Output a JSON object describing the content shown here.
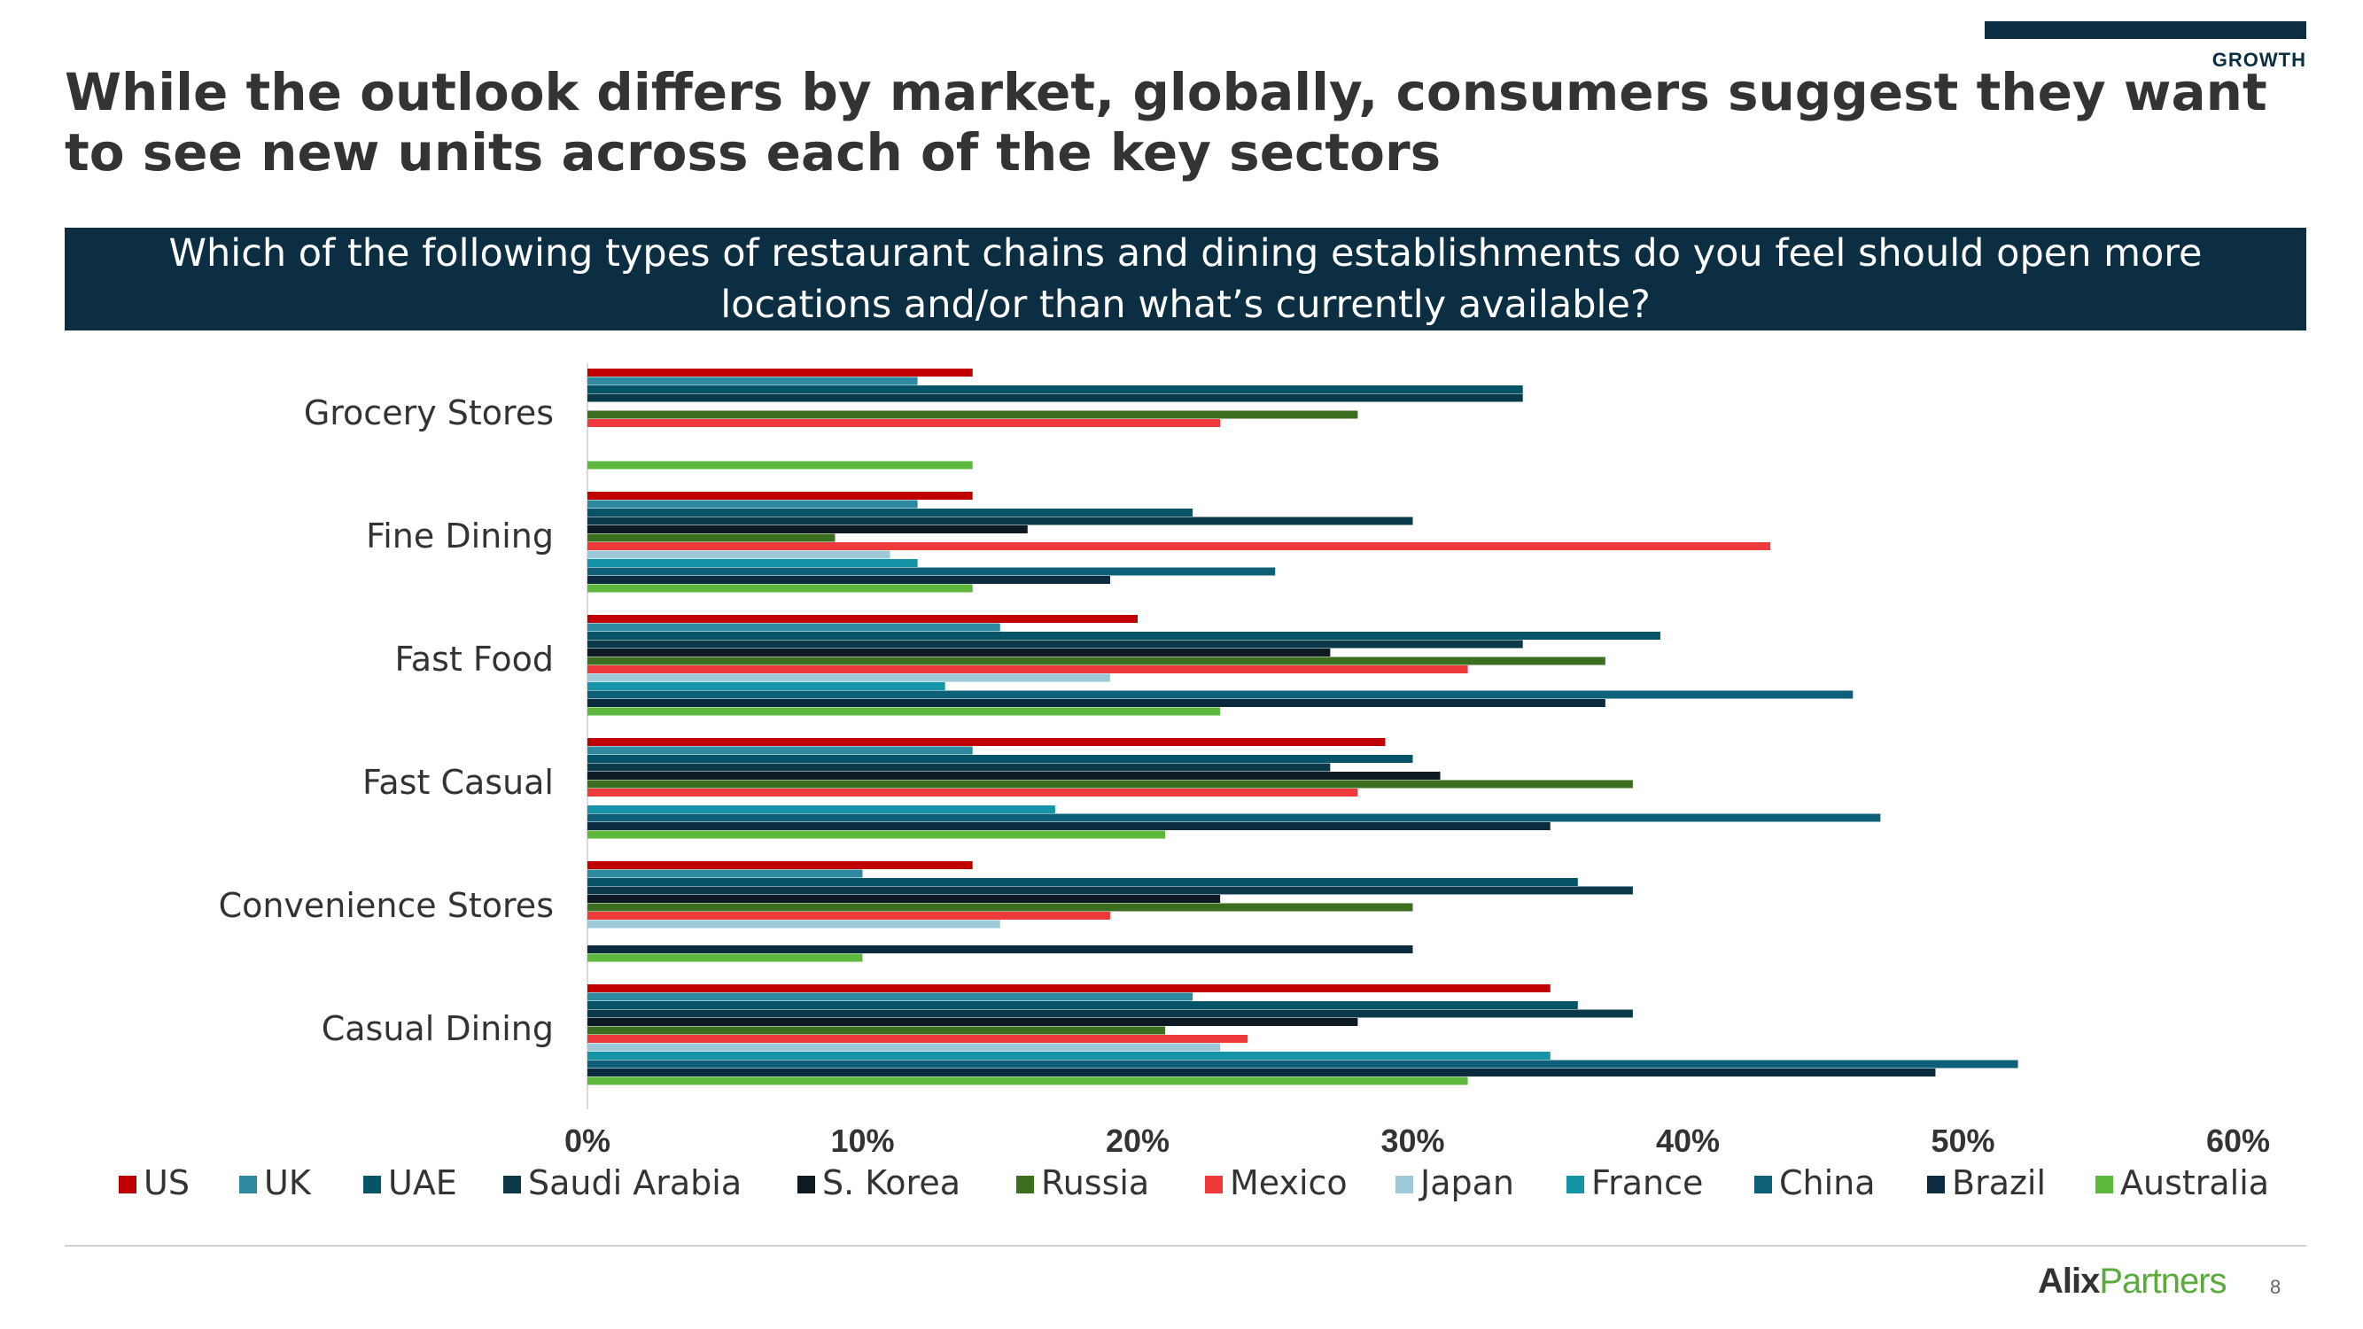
{
  "header": {
    "section_label": "GROWTH",
    "headline": "While the outlook differs by market, globally, consumers suggest they want to see new units across each of the key sectors",
    "question": "Which of the following types of restaurant chains and dining establishments do you feel should open more locations and/or than what’s currently available?"
  },
  "footer": {
    "logo_part1": "Alix",
    "logo_part2": "Partners",
    "page_number": "8"
  },
  "chart_data": {
    "type": "bar",
    "orientation": "horizontal",
    "categories": [
      "Grocery Stores",
      "Fine Dining",
      "Fast Food",
      "Fast Casual",
      "Convenience Stores",
      "Casual Dining"
    ],
    "xlim": [
      0,
      60
    ],
    "x_ticks": [
      "0%",
      "10%",
      "20%",
      "30%",
      "40%",
      "50%",
      "60%"
    ],
    "grid": false,
    "legend_position": "bottom",
    "series": [
      {
        "name": "US",
        "color": "#c00000",
        "values": [
          14,
          14,
          20,
          29,
          14,
          35
        ]
      },
      {
        "name": "UK",
        "color": "#2e8aa0",
        "values": [
          12,
          12,
          15,
          14,
          10,
          22
        ]
      },
      {
        "name": "UAE",
        "color": "#075468",
        "values": [
          34,
          22,
          39,
          30,
          36,
          36
        ]
      },
      {
        "name": "Saudi Arabia",
        "color": "#0a3a4a",
        "values": [
          34,
          30,
          34,
          27,
          38,
          38
        ]
      },
      {
        "name": "S. Korea",
        "color": "#0d1a24",
        "values": [
          null,
          16,
          27,
          31,
          23,
          28
        ]
      },
      {
        "name": "Russia",
        "color": "#3b6e1f",
        "values": [
          28,
          9,
          37,
          38,
          30,
          21
        ]
      },
      {
        "name": "Mexico",
        "color": "#ee3a3a",
        "values": [
          23,
          43,
          32,
          28,
          19,
          24
        ]
      },
      {
        "name": "Japan",
        "color": "#9dc9d8",
        "values": [
          null,
          11,
          19,
          null,
          15,
          23
        ]
      },
      {
        "name": "France",
        "color": "#1494a6",
        "values": [
          null,
          12,
          13,
          17,
          null,
          35
        ]
      },
      {
        "name": "China",
        "color": "#0e5f78",
        "values": [
          null,
          25,
          46,
          47,
          null,
          52
        ]
      },
      {
        "name": "Brazil",
        "color": "#0d2b3f",
        "values": [
          null,
          19,
          37,
          35,
          30,
          49
        ]
      },
      {
        "name": "Australia",
        "color": "#5db83c",
        "values": [
          14,
          14,
          23,
          21,
          10,
          32
        ]
      }
    ]
  }
}
